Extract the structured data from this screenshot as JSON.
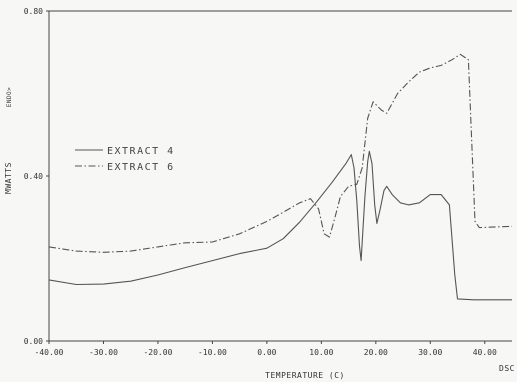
{
  "chart_data": {
    "type": "line",
    "title": "",
    "xlabel": "TEMPERATURE (C)",
    "ylabel": "MWATTS",
    "y_direction_label": "ENDO>",
    "corner_label": "DSC",
    "xlim": [
      -40,
      45
    ],
    "ylim": [
      0,
      0.8
    ],
    "x_ticks": [
      -40,
      -30,
      -20,
      -10,
      0,
      10,
      20,
      30,
      40
    ],
    "x_tick_labels": [
      "-40.00",
      "-30.00",
      "-20.00",
      "-10.00",
      "0.00",
      "10.00",
      "20.00",
      "30.00",
      "40.00"
    ],
    "y_ticks": [
      0,
      0.4,
      0.8
    ],
    "y_tick_labels": [
      "0.00",
      "0.40",
      "0.80"
    ],
    "grid": false,
    "legend_position": "left",
    "series": [
      {
        "name": "EXTRACT 4",
        "line_style": "solid",
        "color": "#555555",
        "points": [
          [
            -40,
            0.148
          ],
          [
            -35,
            0.137
          ],
          [
            -30,
            0.138
          ],
          [
            -25,
            0.145
          ],
          [
            -20,
            0.16
          ],
          [
            -15,
            0.178
          ],
          [
            -10,
            0.195
          ],
          [
            -5,
            0.212
          ],
          [
            0,
            0.225
          ],
          [
            3,
            0.248
          ],
          [
            6,
            0.288
          ],
          [
            9,
            0.335
          ],
          [
            12,
            0.385
          ],
          [
            14.5,
            0.43
          ],
          [
            15.5,
            0.452
          ],
          [
            16,
            0.42
          ],
          [
            16.5,
            0.34
          ],
          [
            17,
            0.23
          ],
          [
            17.3,
            0.195
          ],
          [
            18,
            0.35
          ],
          [
            18.5,
            0.435
          ],
          [
            18.8,
            0.46
          ],
          [
            19.3,
            0.43
          ],
          [
            19.8,
            0.33
          ],
          [
            20.2,
            0.285
          ],
          [
            20.8,
            0.32
          ],
          [
            21.5,
            0.365
          ],
          [
            22,
            0.375
          ],
          [
            23,
            0.355
          ],
          [
            24.5,
            0.335
          ],
          [
            26,
            0.33
          ],
          [
            28,
            0.335
          ],
          [
            30,
            0.355
          ],
          [
            32,
            0.355
          ],
          [
            33.5,
            0.33
          ],
          [
            34.5,
            0.16
          ],
          [
            35,
            0.102
          ],
          [
            38,
            0.1
          ],
          [
            45,
            0.1
          ]
        ]
      },
      {
        "name": "EXTRACT 6",
        "line_style": "dash-dot",
        "color": "#555555",
        "points": [
          [
            -40,
            0.228
          ],
          [
            -35,
            0.218
          ],
          [
            -30,
            0.215
          ],
          [
            -25,
            0.218
          ],
          [
            -20,
            0.228
          ],
          [
            -15,
            0.238
          ],
          [
            -10,
            0.24
          ],
          [
            -5,
            0.26
          ],
          [
            0,
            0.29
          ],
          [
            3,
            0.312
          ],
          [
            6,
            0.335
          ],
          [
            8,
            0.345
          ],
          [
            9.5,
            0.32
          ],
          [
            10.5,
            0.26
          ],
          [
            11.5,
            0.252
          ],
          [
            12.5,
            0.3
          ],
          [
            13.5,
            0.35
          ],
          [
            15,
            0.375
          ],
          [
            16.5,
            0.38
          ],
          [
            17.5,
            0.42
          ],
          [
            18.5,
            0.54
          ],
          [
            19.5,
            0.58
          ],
          [
            21,
            0.56
          ],
          [
            22,
            0.552
          ],
          [
            24,
            0.6
          ],
          [
            26,
            0.628
          ],
          [
            28,
            0.652
          ],
          [
            30,
            0.662
          ],
          [
            32,
            0.668
          ],
          [
            34,
            0.682
          ],
          [
            35.5,
            0.695
          ],
          [
            37,
            0.682
          ],
          [
            37.5,
            0.52
          ],
          [
            38.2,
            0.29
          ],
          [
            39,
            0.275
          ],
          [
            45,
            0.278
          ]
        ]
      }
    ]
  }
}
